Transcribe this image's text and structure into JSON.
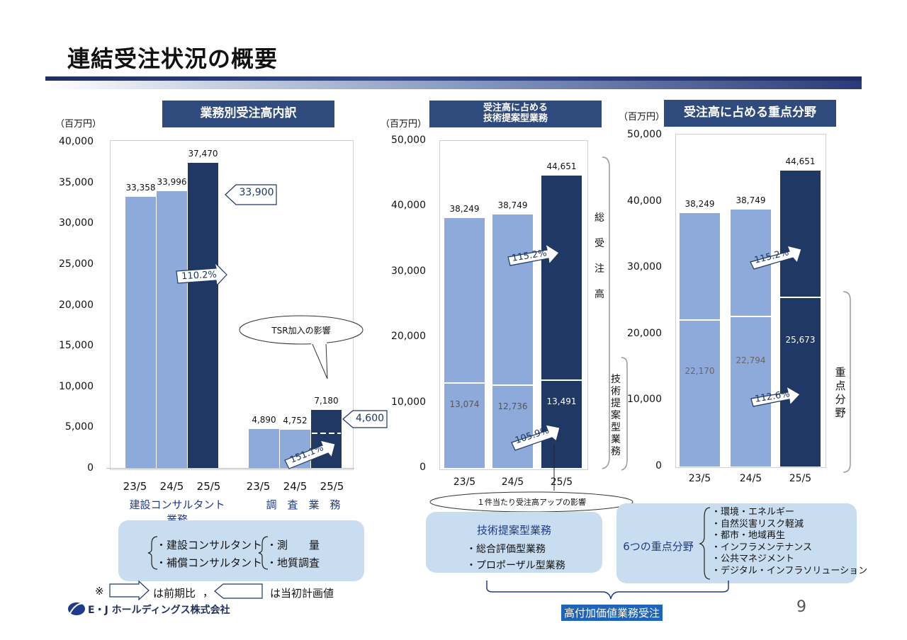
{
  "page_title": "連結受注状況の概要",
  "page_number": "9",
  "company_name": "E・J ホールディングス株式会社",
  "footer_note": {
    "mark": "※",
    "arrow_meaning": "は前期比",
    "separator": "，",
    "callout_meaning": "は当初計画値"
  },
  "bottom_label": "高付加価値業務受注",
  "chart1": {
    "header": "業務別受注高内訳",
    "unit": "（百万円）",
    "group_labels": [
      "建設コンサルタント業務",
      "調　査　業　務"
    ],
    "plan_values": [
      "33,900",
      "4,600"
    ],
    "growth": [
      "110.2%",
      "151.1%"
    ],
    "tsr_note": "TSR加入の影響",
    "legend": {
      "left": [
        "・建設コンサルタント",
        "・補償コンサルタント"
      ],
      "right": [
        "・測　　量",
        "・地質調査"
      ]
    }
  },
  "chart2": {
    "header_lines": [
      "受注高に占める",
      "技術提案型業務"
    ],
    "unit": "（百万円）",
    "total_label": "総受注高",
    "tech_label": "技術提案型業務",
    "growth": [
      "115.2%",
      "105.9%"
    ],
    "note": "１件当たり受注高アップの影響",
    "legend": {
      "title": "技術提案型業務",
      "items": [
        "・総合評価型業務",
        "・プロポーザル型業務"
      ]
    }
  },
  "chart3": {
    "header": "受注高に占める重点分野",
    "unit": "（百万円）",
    "focus_label": "重点分野",
    "growth": [
      "115.2%",
      "112.6%"
    ],
    "legend": {
      "title": "6つの重点分野",
      "items": [
        "・環境・エネルギー",
        "・自然災害リスク軽減",
        "・都市・地域再生",
        "・インフラメンテナンス",
        "・公共マネジメント",
        "・デジタル・インフラソリューション"
      ]
    }
  },
  "chart_data": [
    {
      "type": "bar",
      "title": "業務別受注高内訳",
      "ylabel": "（百万円）",
      "ylim": [
        0,
        40000
      ],
      "yticks": [
        "0",
        "5,000",
        "10,000",
        "15,000",
        "20,000",
        "25,000",
        "30,000",
        "35,000",
        "40,000"
      ],
      "categories": [
        "23/5",
        "24/5",
        "25/5",
        "23/5",
        "24/5",
        "25/5"
      ],
      "values": [
        33358,
        33996,
        37470,
        4890,
        4752,
        7180
      ],
      "value_labels": [
        "33,358",
        "33,996",
        "37,470",
        "4,890",
        "4,752",
        "7,180"
      ],
      "colors": [
        "#8eaadb",
        "#8eaadb",
        "#1f3864",
        "#8eaadb",
        "#8eaadb",
        "#1f3864"
      ],
      "plan_markers": [
        33900,
        4600
      ]
    },
    {
      "type": "bar",
      "title": "受注高に占める技術提案型業務",
      "ylabel": "（百万円）",
      "ylim": [
        0,
        50000
      ],
      "yticks": [
        "0",
        "10,000",
        "20,000",
        "30,000",
        "40,000",
        "50,000"
      ],
      "categories": [
        "23/5",
        "24/5",
        "25/5"
      ],
      "series": [
        {
          "values": [
            13074,
            12736,
            13491
          ],
          "labels": [
            "13,074",
            "12,736",
            "13,491"
          ]
        },
        {
          "values": [
            38249,
            38749,
            44651
          ],
          "labels": [
            "38,249",
            "38,749",
            "44,651"
          ]
        }
      ]
    },
    {
      "type": "bar",
      "title": "受注高に占める重点分野",
      "ylabel": "（百万円）",
      "ylim": [
        0,
        50000
      ],
      "yticks": [
        "0",
        "10,000",
        "20,000",
        "30,000",
        "40,000",
        "50,000"
      ],
      "categories": [
        "23/5",
        "24/5",
        "25/5"
      ],
      "series": [
        {
          "values": [
            22170,
            22794,
            25673
          ],
          "labels": [
            "22,170",
            "22,794",
            "25,673"
          ]
        },
        {
          "values": [
            38249,
            38749,
            44651
          ],
          "labels": [
            "38,249",
            "38,749",
            "44,651"
          ]
        }
      ]
    }
  ]
}
